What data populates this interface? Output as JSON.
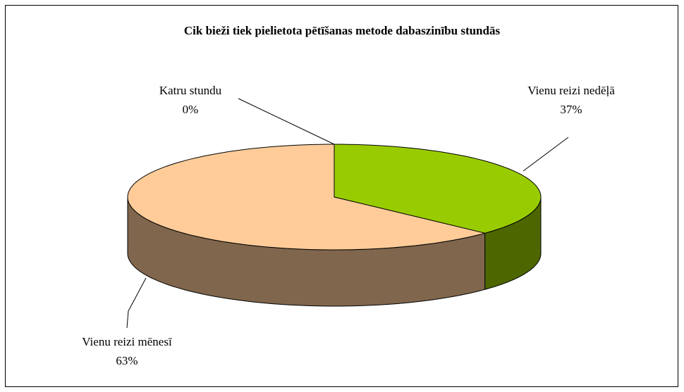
{
  "chart_data": {
    "type": "pie",
    "title": "Cik bieži tiek pielietota pētīšanas metode dabaszinību stundās",
    "categories": [
      "Katru stundu",
      "Vienu reizi nedēļā",
      "Vienu reizi mēnesī"
    ],
    "values": [
      0,
      37,
      63
    ],
    "value_labels": [
      "0%",
      "37%",
      "63%"
    ],
    "colors": [
      "#9999ff",
      "#99cc00",
      "#ffcc99"
    ]
  }
}
